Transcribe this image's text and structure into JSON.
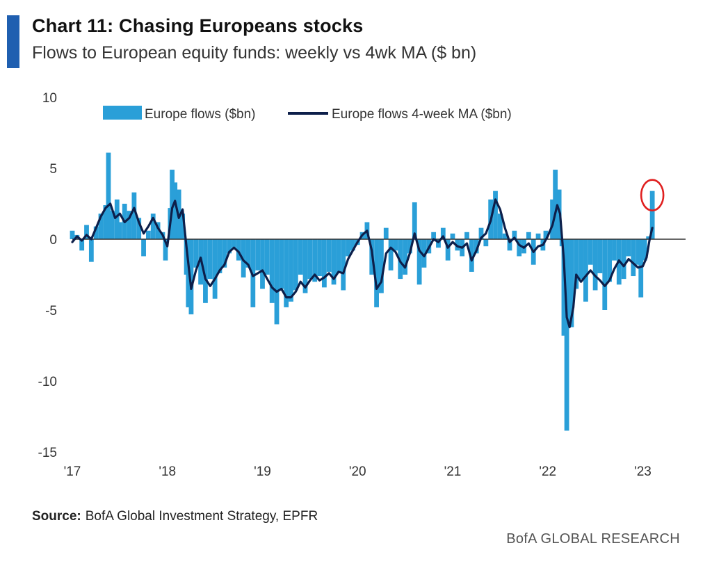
{
  "header": {
    "title": "Chart 11: Chasing Europeans stocks",
    "subtitle": "Flows to European equity funds: weekly vs 4wk MA ($ bn)"
  },
  "footer": {
    "source_label": "Source:",
    "source_text": "BofA Global Investment Strategy, EPFR",
    "brand": "BofA GLOBAL RESEARCH"
  },
  "colors": {
    "bars": "#2a9fd8",
    "ma_line": "#0d1f4a",
    "zero_line": "#333333",
    "highlight_circle": "#e02020",
    "accent": "#1f5fb0"
  },
  "chart_data": {
    "type": "bar+line",
    "title": "Chart 11: Chasing Europeans stocks",
    "subtitle": "Flows to European equity funds: weekly vs 4wk MA ($ bn)",
    "xlabel": "",
    "ylabel": "",
    "ylim": [
      -15,
      10
    ],
    "yticks": [
      10,
      5,
      0,
      -5,
      -10,
      -15
    ],
    "x_tick_labels": [
      "'17",
      "'18",
      "'19",
      "'20",
      "'21",
      "'22",
      "'23"
    ],
    "x_tick_years": [
      2017,
      2018,
      2019,
      2020,
      2021,
      2022,
      2023
    ],
    "x_range": [
      2017.0,
      2023.45
    ],
    "grid": false,
    "legend_position": "top",
    "annotation": "red circle highlighting latest weekly inflow",
    "series": [
      {
        "name": "Europe flows ($bn)",
        "type": "bar",
        "points": [
          [
            2017.0,
            0.6
          ],
          [
            2017.05,
            0.3
          ],
          [
            2017.1,
            -0.8
          ],
          [
            2017.15,
            1.0
          ],
          [
            2017.2,
            -1.6
          ],
          [
            2017.25,
            0.9
          ],
          [
            2017.3,
            1.8
          ],
          [
            2017.35,
            2.4
          ],
          [
            2017.38,
            6.1
          ],
          [
            2017.42,
            2.0
          ],
          [
            2017.47,
            2.8
          ],
          [
            2017.5,
            1.2
          ],
          [
            2017.55,
            2.5
          ],
          [
            2017.6,
            2.0
          ],
          [
            2017.65,
            3.3
          ],
          [
            2017.7,
            1.5
          ],
          [
            2017.75,
            -1.2
          ],
          [
            2017.8,
            0.6
          ],
          [
            2017.85,
            1.8
          ],
          [
            2017.9,
            1.2
          ],
          [
            2017.95,
            0.5
          ],
          [
            2017.98,
            -1.5
          ],
          [
            2018.03,
            2.2
          ],
          [
            2018.05,
            4.9
          ],
          [
            2018.08,
            4.0
          ],
          [
            2018.12,
            3.5
          ],
          [
            2018.16,
            1.8
          ],
          [
            2018.2,
            -2.5
          ],
          [
            2018.22,
            -4.8
          ],
          [
            2018.25,
            -5.3
          ],
          [
            2018.3,
            -2.0
          ],
          [
            2018.35,
            -3.2
          ],
          [
            2018.4,
            -4.5
          ],
          [
            2018.45,
            -2.8
          ],
          [
            2018.5,
            -4.2
          ],
          [
            2018.55,
            -2.4
          ],
          [
            2018.6,
            -2.0
          ],
          [
            2018.65,
            -1.0
          ],
          [
            2018.7,
            -0.6
          ],
          [
            2018.75,
            -1.5
          ],
          [
            2018.8,
            -2.7
          ],
          [
            2018.85,
            -2.0
          ],
          [
            2018.9,
            -4.8
          ],
          [
            2018.95,
            -2.2
          ],
          [
            2019.0,
            -3.5
          ],
          [
            2019.05,
            -2.5
          ],
          [
            2019.1,
            -4.5
          ],
          [
            2019.15,
            -6.0
          ],
          [
            2019.2,
            -3.5
          ],
          [
            2019.25,
            -4.8
          ],
          [
            2019.3,
            -4.4
          ],
          [
            2019.35,
            -3.6
          ],
          [
            2019.4,
            -2.5
          ],
          [
            2019.45,
            -3.8
          ],
          [
            2019.5,
            -2.8
          ],
          [
            2019.55,
            -3.0
          ],
          [
            2019.6,
            -2.6
          ],
          [
            2019.65,
            -3.4
          ],
          [
            2019.7,
            -2.3
          ],
          [
            2019.75,
            -3.2
          ],
          [
            2019.8,
            -2.4
          ],
          [
            2019.85,
            -3.6
          ],
          [
            2019.9,
            -1.2
          ],
          [
            2019.95,
            -0.8
          ],
          [
            2020.0,
            -0.4
          ],
          [
            2020.05,
            0.5
          ],
          [
            2020.1,
            1.2
          ],
          [
            2020.15,
            -2.5
          ],
          [
            2020.2,
            -4.8
          ],
          [
            2020.25,
            -3.8
          ],
          [
            2020.3,
            0.8
          ],
          [
            2020.35,
            -2.2
          ],
          [
            2020.4,
            -0.8
          ],
          [
            2020.45,
            -2.8
          ],
          [
            2020.5,
            -2.5
          ],
          [
            2020.55,
            -1.0
          ],
          [
            2020.6,
            2.6
          ],
          [
            2020.65,
            -3.2
          ],
          [
            2020.7,
            -2.0
          ],
          [
            2020.75,
            -1.0
          ],
          [
            2020.8,
            0.5
          ],
          [
            2020.85,
            -0.6
          ],
          [
            2020.9,
            0.8
          ],
          [
            2020.95,
            -1.5
          ],
          [
            2021.0,
            0.4
          ],
          [
            2021.05,
            -0.8
          ],
          [
            2021.1,
            -1.2
          ],
          [
            2021.15,
            0.5
          ],
          [
            2021.2,
            -2.3
          ],
          [
            2021.25,
            -1.0
          ],
          [
            2021.3,
            0.8
          ],
          [
            2021.35,
            -0.5
          ],
          [
            2021.4,
            2.8
          ],
          [
            2021.45,
            3.4
          ],
          [
            2021.5,
            1.8
          ],
          [
            2021.55,
            0.4
          ],
          [
            2021.6,
            -0.8
          ],
          [
            2021.65,
            0.6
          ],
          [
            2021.7,
            -1.2
          ],
          [
            2021.75,
            -1.0
          ],
          [
            2021.8,
            0.5
          ],
          [
            2021.85,
            -1.8
          ],
          [
            2021.9,
            0.4
          ],
          [
            2021.95,
            -0.8
          ],
          [
            2021.98,
            0.6
          ],
          [
            2022.05,
            2.8
          ],
          [
            2022.08,
            4.9
          ],
          [
            2022.12,
            3.5
          ],
          [
            2022.15,
            -0.5
          ],
          [
            2022.17,
            -6.8
          ],
          [
            2022.2,
            -13.5
          ],
          [
            2022.25,
            -6.2
          ],
          [
            2022.3,
            -3.5
          ],
          [
            2022.35,
            -2.8
          ],
          [
            2022.4,
            -4.4
          ],
          [
            2022.45,
            -1.8
          ],
          [
            2022.5,
            -3.6
          ],
          [
            2022.55,
            -2.4
          ],
          [
            2022.6,
            -5.0
          ],
          [
            2022.65,
            -3.0
          ],
          [
            2022.7,
            -1.5
          ],
          [
            2022.75,
            -3.2
          ],
          [
            2022.8,
            -2.8
          ],
          [
            2022.85,
            -1.2
          ],
          [
            2022.9,
            -2.6
          ],
          [
            2022.95,
            -1.8
          ],
          [
            2022.98,
            -4.1
          ],
          [
            2023.02,
            -1.5
          ],
          [
            2023.06,
            0.2
          ],
          [
            2023.1,
            3.4
          ]
        ]
      },
      {
        "name": "Europe flows 4-week MA ($bn)",
        "type": "line",
        "points": [
          [
            2017.0,
            -0.2
          ],
          [
            2017.05,
            0.2
          ],
          [
            2017.1,
            -0.1
          ],
          [
            2017.15,
            0.3
          ],
          [
            2017.2,
            0.0
          ],
          [
            2017.25,
            0.8
          ],
          [
            2017.3,
            1.6
          ],
          [
            2017.35,
            2.2
          ],
          [
            2017.4,
            2.5
          ],
          [
            2017.45,
            1.5
          ],
          [
            2017.5,
            1.8
          ],
          [
            2017.55,
            1.2
          ],
          [
            2017.6,
            1.5
          ],
          [
            2017.65,
            2.2
          ],
          [
            2017.7,
            1.2
          ],
          [
            2017.75,
            0.4
          ],
          [
            2017.8,
            0.9
          ],
          [
            2017.85,
            1.5
          ],
          [
            2017.9,
            0.8
          ],
          [
            2017.95,
            0.3
          ],
          [
            2018.0,
            -0.5
          ],
          [
            2018.05,
            2.2
          ],
          [
            2018.08,
            2.7
          ],
          [
            2018.12,
            1.5
          ],
          [
            2018.16,
            2.1
          ],
          [
            2018.2,
            -0.5
          ],
          [
            2018.25,
            -3.5
          ],
          [
            2018.3,
            -2.2
          ],
          [
            2018.35,
            -1.3
          ],
          [
            2018.4,
            -2.8
          ],
          [
            2018.45,
            -3.3
          ],
          [
            2018.5,
            -2.8
          ],
          [
            2018.55,
            -2.2
          ],
          [
            2018.6,
            -1.8
          ],
          [
            2018.65,
            -0.9
          ],
          [
            2018.7,
            -0.6
          ],
          [
            2018.75,
            -0.9
          ],
          [
            2018.8,
            -1.5
          ],
          [
            2018.85,
            -1.8
          ],
          [
            2018.9,
            -2.6
          ],
          [
            2018.95,
            -2.4
          ],
          [
            2019.0,
            -2.2
          ],
          [
            2019.05,
            -2.8
          ],
          [
            2019.1,
            -3.4
          ],
          [
            2019.15,
            -3.7
          ],
          [
            2019.2,
            -3.5
          ],
          [
            2019.25,
            -4.1
          ],
          [
            2019.3,
            -4.1
          ],
          [
            2019.35,
            -3.7
          ],
          [
            2019.4,
            -3.0
          ],
          [
            2019.45,
            -3.4
          ],
          [
            2019.5,
            -2.9
          ],
          [
            2019.55,
            -2.5
          ],
          [
            2019.6,
            -2.9
          ],
          [
            2019.65,
            -2.7
          ],
          [
            2019.7,
            -2.4
          ],
          [
            2019.75,
            -2.8
          ],
          [
            2019.8,
            -2.3
          ],
          [
            2019.85,
            -2.4
          ],
          [
            2019.9,
            -1.4
          ],
          [
            2019.95,
            -0.8
          ],
          [
            2020.0,
            -0.2
          ],
          [
            2020.05,
            0.3
          ],
          [
            2020.1,
            0.6
          ],
          [
            2020.15,
            -0.8
          ],
          [
            2020.2,
            -3.5
          ],
          [
            2020.25,
            -3.0
          ],
          [
            2020.3,
            -1.0
          ],
          [
            2020.35,
            -0.6
          ],
          [
            2020.4,
            -0.9
          ],
          [
            2020.45,
            -1.6
          ],
          [
            2020.5,
            -2.0
          ],
          [
            2020.55,
            -1.0
          ],
          [
            2020.6,
            0.4
          ],
          [
            2020.65,
            -0.8
          ],
          [
            2020.7,
            -1.2
          ],
          [
            2020.75,
            -0.6
          ],
          [
            2020.8,
            0.0
          ],
          [
            2020.85,
            -0.2
          ],
          [
            2020.9,
            0.2
          ],
          [
            2020.95,
            -0.6
          ],
          [
            2021.0,
            -0.2
          ],
          [
            2021.05,
            -0.5
          ],
          [
            2021.1,
            -0.6
          ],
          [
            2021.15,
            -0.3
          ],
          [
            2021.2,
            -1.5
          ],
          [
            2021.25,
            -0.8
          ],
          [
            2021.3,
            0.1
          ],
          [
            2021.35,
            0.4
          ],
          [
            2021.4,
            1.3
          ],
          [
            2021.45,
            2.8
          ],
          [
            2021.5,
            2.1
          ],
          [
            2021.55,
            0.8
          ],
          [
            2021.6,
            -0.2
          ],
          [
            2021.65,
            0.1
          ],
          [
            2021.7,
            -0.4
          ],
          [
            2021.75,
            -0.6
          ],
          [
            2021.8,
            -0.3
          ],
          [
            2021.85,
            -0.9
          ],
          [
            2021.9,
            -0.5
          ],
          [
            2021.95,
            -0.4
          ],
          [
            2022.0,
            0.2
          ],
          [
            2022.05,
            1.0
          ],
          [
            2022.1,
            2.4
          ],
          [
            2022.13,
            1.8
          ],
          [
            2022.17,
            -1.5
          ],
          [
            2022.2,
            -5.5
          ],
          [
            2022.23,
            -6.2
          ],
          [
            2022.27,
            -4.8
          ],
          [
            2022.3,
            -2.5
          ],
          [
            2022.35,
            -3.0
          ],
          [
            2022.4,
            -2.6
          ],
          [
            2022.45,
            -2.2
          ],
          [
            2022.5,
            -2.6
          ],
          [
            2022.55,
            -2.9
          ],
          [
            2022.6,
            -3.3
          ],
          [
            2022.65,
            -2.9
          ],
          [
            2022.7,
            -2.1
          ],
          [
            2022.75,
            -1.5
          ],
          [
            2022.8,
            -1.9
          ],
          [
            2022.85,
            -1.4
          ],
          [
            2022.9,
            -1.7
          ],
          [
            2022.95,
            -2.0
          ],
          [
            2023.0,
            -1.9
          ],
          [
            2023.04,
            -1.3
          ],
          [
            2023.07,
            -0.1
          ],
          [
            2023.1,
            0.8
          ]
        ]
      }
    ]
  }
}
